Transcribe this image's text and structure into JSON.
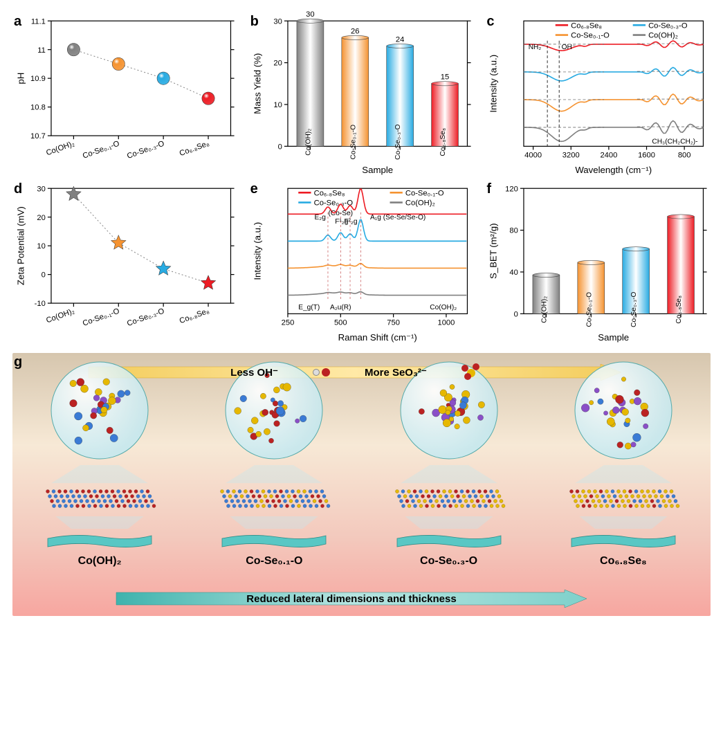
{
  "colors": {
    "gray": "#808080",
    "orange": "#f59331",
    "blue": "#29abe2",
    "red": "#ed1c24",
    "axis": "#000000"
  },
  "samples": [
    "Co(OH)₂",
    "Co-Se₀.₁-O",
    "Co-Se₀.₃-O",
    "Co₆.₈Se₈"
  ],
  "panel_a": {
    "label": "a",
    "ylabel": "pH",
    "ylim": [
      10.7,
      11.1
    ],
    "yticks": [
      10.7,
      10.8,
      10.9,
      11.0,
      11.1
    ],
    "points": [
      {
        "x": 0,
        "y": 11.0,
        "color": "#808080"
      },
      {
        "x": 1,
        "y": 10.95,
        "color": "#f59331"
      },
      {
        "x": 2,
        "y": 10.9,
        "color": "#29abe2"
      },
      {
        "x": 3,
        "y": 10.83,
        "color": "#ed1c24"
      }
    ],
    "marker": "sphere",
    "marker_size": 14
  },
  "panel_b": {
    "label": "b",
    "ylabel": "Mass Yield  (%)",
    "xlabel": "Sample",
    "ylim": [
      0,
      30
    ],
    "yticks": [
      0,
      10,
      20,
      30
    ],
    "bars": [
      {
        "label": "Co(OH)₂",
        "value": 30,
        "color": "#808080"
      },
      {
        "label": "Co-Se₀.₁-O",
        "value": 26,
        "color": "#f59331"
      },
      {
        "label": "Co-Se₀.₃-O",
        "value": 24,
        "color": "#29abe2"
      },
      {
        "label": "Co₆.₈Se₈",
        "value": 15,
        "color": "#ed1c24"
      }
    ],
    "bar_width": 0.6
  },
  "panel_c": {
    "label": "c",
    "ylabel": "Intensity (a.u.)",
    "xlabel": "Wavelength (cm⁻¹)",
    "xlim": [
      4200,
      400
    ],
    "xticks": [
      4000,
      3200,
      2400,
      1600,
      800
    ],
    "legend": [
      {
        "name": "Co₆.₈Se₈",
        "color": "#ed1c24"
      },
      {
        "name": "Co-Se₀.₃-O",
        "color": "#29abe2"
      },
      {
        "name": "Co-Se₀.₁-O",
        "color": "#f59331"
      },
      {
        "name": "Co(OH)₂",
        "color": "#808080"
      }
    ],
    "annotations": [
      {
        "text": "NH₂⁻",
        "x": 3700
      },
      {
        "text": "OH⁻",
        "x": 3450
      },
      {
        "text": "CH₃(CH₂CH₂)-",
        "x": 1200
      }
    ]
  },
  "panel_d": {
    "label": "d",
    "ylabel": "Zeta Potential (mV)",
    "ylim": [
      -10,
      30
    ],
    "yticks": [
      -10,
      0,
      10,
      20,
      30
    ],
    "points": [
      {
        "x": 0,
        "y": 28,
        "color": "#808080"
      },
      {
        "x": 1,
        "y": 11,
        "color": "#f59331"
      },
      {
        "x": 2,
        "y": 2,
        "color": "#29abe2"
      },
      {
        "x": 3,
        "y": -3,
        "color": "#ed1c24"
      }
    ],
    "marker": "star",
    "marker_size": 16
  },
  "panel_e": {
    "label": "e",
    "ylabel": "Intensity (a.u.)",
    "xlabel": "Raman Shift (cm⁻¹)",
    "xlim": [
      250,
      1100
    ],
    "xticks": [
      250,
      500,
      750,
      1000
    ],
    "legend": [
      {
        "name": "Co₆.₈Se₈",
        "color": "#ed1c24"
      },
      {
        "name": "Co-Se₀.₁-O",
        "color": "#f59331"
      },
      {
        "name": "Co-Se₀.₃-O",
        "color": "#29abe2"
      },
      {
        "name": "Co(OH)₂",
        "color": "#808080"
      }
    ],
    "peak_labels": [
      "E₂g",
      "(Co-Se)",
      "F¹₂g",
      "F²₂g",
      "A₁g (Se-Se/Se-O)",
      "E_g(T)",
      "A₂u(R)",
      "Co(OH)₂"
    ]
  },
  "panel_f": {
    "label": "f",
    "ylabel": "S_BET (m²/g)",
    "xlabel": "Sample",
    "ylim": [
      0,
      120
    ],
    "yticks": [
      0,
      40,
      80,
      120
    ],
    "bars": [
      {
        "label": "Co(OH)₂",
        "value": 37,
        "color": "#808080"
      },
      {
        "label": "Co-Se₀.₁-O",
        "value": 49,
        "color": "#f59331"
      },
      {
        "label": "Co-Se₀.₃-O",
        "value": 62,
        "color": "#29abe2"
      },
      {
        "label": "Co₆.₈Se₈",
        "value": 93,
        "color": "#ed1c24"
      }
    ]
  },
  "panel_g": {
    "label": "g",
    "top_text_left": "Less OH⁻",
    "top_text_right": "More SeO₃²⁻",
    "bottom_text": "Reduced lateral dimensions and thickness",
    "bg_gradient": [
      "#d6c6ae",
      "#f7e9d6",
      "#f3c9bd",
      "#f7a6a0"
    ],
    "top_arrow_gradient": [
      "#f3cc5b",
      "#ffe9a6",
      "#f3cc5b"
    ],
    "bottom_arrow_gradient": [
      "#3fb3ad",
      "#b7e4e0",
      "#7fd1cb"
    ],
    "slab_color": "#59c7c4",
    "sphere_color": "#bfe8f2",
    "items": [
      "Co(OH)₂",
      "Co-Se₀.₁-O",
      "Co-Se₀.₃-O",
      "Co₆.₈Se₈"
    ]
  }
}
